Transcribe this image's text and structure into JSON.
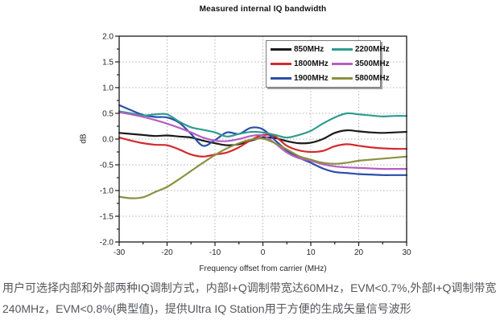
{
  "caption": {
    "line1": "用户可选择内部和外部两种IQ调制方式，内部I+Q调制带宽达60MHz，EVM<0.7%,外部I+Q调制带宽",
    "line2": "240MHz，EVM<0.8%(典型值)，提供Ultra IQ Station用于方便的生成矢量信号波形"
  },
  "chart_data": {
    "type": "line",
    "title": "Measured internal IQ bandwidth",
    "xlabel": "Frequency offset from carrier (MHz)",
    "ylabel": "dB",
    "xlim": [
      -30,
      30
    ],
    "ylim": [
      -2.0,
      2.0
    ],
    "x_major_ticks": [
      -30,
      -20,
      -10,
      0,
      10,
      20,
      30
    ],
    "x_minor_step": 5,
    "y_major_step": 0.5,
    "y_minor_step": 0.25,
    "x_gridlines": [
      -20,
      -10,
      0,
      10,
      20
    ],
    "y_gridlines": [
      -1.5,
      -1.0,
      -0.5,
      0,
      0.5,
      1.0,
      1.5
    ],
    "grid_style": "dotted",
    "legend_position": "top-right",
    "axis_color": "#1a1a1a",
    "grid_color": "#b3b3b3",
    "x": [
      -30,
      -27.5,
      -25,
      -22.5,
      -20,
      -17.5,
      -15,
      -12.5,
      -10,
      -7.5,
      -5,
      -2.5,
      0,
      2.5,
      5,
      7.5,
      10,
      12.5,
      15,
      17.5,
      20,
      22.5,
      25,
      27.5,
      30
    ],
    "series": [
      {
        "name": "850MHz",
        "color": "#1a1a1a",
        "values": [
          0.12,
          0.1,
          0.08,
          0.06,
          0.07,
          0.05,
          0.03,
          -0.03,
          -0.08,
          -0.12,
          -0.1,
          -0.03,
          0.03,
          0.02,
          -0.04,
          -0.08,
          -0.07,
          0.0,
          0.12,
          0.17,
          0.15,
          0.13,
          0.12,
          0.13,
          0.14
        ]
      },
      {
        "name": "1800MHz",
        "color": "#d22b2f",
        "values": [
          0.03,
          -0.03,
          -0.08,
          -0.11,
          -0.12,
          -0.2,
          -0.3,
          -0.34,
          -0.3,
          -0.26,
          -0.16,
          -0.02,
          0.08,
          0.05,
          -0.13,
          -0.22,
          -0.25,
          -0.23,
          -0.14,
          -0.1,
          -0.13,
          -0.16,
          -0.18,
          -0.19,
          -0.19
        ]
      },
      {
        "name": "1900MHz",
        "color": "#2c4da8",
        "values": [
          0.66,
          0.56,
          0.47,
          0.43,
          0.42,
          0.32,
          0.1,
          -0.13,
          -0.02,
          0.13,
          0.1,
          0.22,
          0.19,
          -0.02,
          -0.22,
          -0.36,
          -0.46,
          -0.57,
          -0.64,
          -0.66,
          -0.68,
          -0.69,
          -0.7,
          -0.7,
          -0.7
        ]
      },
      {
        "name": "2200MHz",
        "color": "#2f9c90",
        "values": [
          0.54,
          0.5,
          0.46,
          0.48,
          0.48,
          0.34,
          0.23,
          0.18,
          0.13,
          0.05,
          0.1,
          0.14,
          0.13,
          0.08,
          0.03,
          0.08,
          0.16,
          0.3,
          0.42,
          0.5,
          0.48,
          0.46,
          0.44,
          0.45,
          0.45
        ]
      },
      {
        "name": "3500MHz",
        "color": "#b55ec2",
        "values": [
          0.52,
          0.48,
          0.43,
          0.37,
          0.3,
          0.22,
          0.13,
          0.03,
          -0.03,
          -0.04,
          0.0,
          0.06,
          0.07,
          -0.08,
          -0.26,
          -0.37,
          -0.42,
          -0.49,
          -0.53,
          -0.55,
          -0.56,
          -0.57,
          -0.58,
          -0.58,
          -0.58
        ]
      },
      {
        "name": "5800MHz",
        "color": "#8d9040",
        "values": [
          -1.12,
          -1.15,
          -1.13,
          -1.03,
          -0.93,
          -0.78,
          -0.62,
          -0.46,
          -0.31,
          -0.18,
          -0.08,
          -0.01,
          0.01,
          -0.08,
          -0.2,
          -0.33,
          -0.4,
          -0.46,
          -0.48,
          -0.46,
          -0.42,
          -0.4,
          -0.38,
          -0.36,
          -0.34
        ]
      }
    ]
  }
}
